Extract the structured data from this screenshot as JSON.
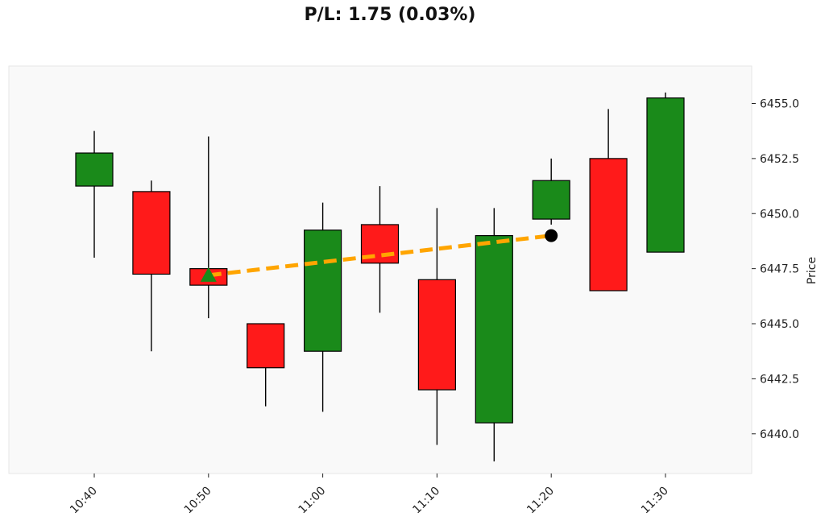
{
  "chart_data": {
    "type": "candlestick",
    "title": "P/L: 1.75 (0.03%)",
    "xlabel": "",
    "ylabel": "Price",
    "y_axis_side": "right",
    "ylim": [
      6438.2,
      6456.7
    ],
    "grid": false,
    "x_ticks": [
      "10:40",
      "10:50",
      "11:00",
      "11:10",
      "11:20",
      "11:30"
    ],
    "candles": [
      {
        "time": "10:40",
        "open": 6451.25,
        "high": 6453.75,
        "low": 6448.0,
        "close": 6452.75
      },
      {
        "time": "10:45",
        "open": 6451.0,
        "high": 6451.5,
        "low": 6443.75,
        "close": 6447.25
      },
      {
        "time": "10:50",
        "open": 6447.5,
        "high": 6453.5,
        "low": 6445.25,
        "close": 6446.75
      },
      {
        "time": "10:55",
        "open": 6445.0,
        "high": 6445.0,
        "low": 6441.25,
        "close": 6443.0
      },
      {
        "time": "11:00",
        "open": 6443.75,
        "high": 6450.5,
        "low": 6441.0,
        "close": 6449.25
      },
      {
        "time": "11:05",
        "open": 6449.5,
        "high": 6451.25,
        "low": 6445.5,
        "close": 6447.75
      },
      {
        "time": "11:10",
        "open": 6447.0,
        "high": 6450.25,
        "low": 6439.5,
        "close": 6442.0
      },
      {
        "time": "11:15",
        "open": 6440.5,
        "high": 6450.25,
        "low": 6438.75,
        "close": 6449.0
      },
      {
        "time": "11:20",
        "open": 6449.75,
        "high": 6452.5,
        "low": 6449.5,
        "close": 6451.5
      },
      {
        "time": "11:25",
        "open": 6452.5,
        "high": 6454.75,
        "low": 6446.5,
        "close": 6446.5
      },
      {
        "time": "11:30",
        "open": 6448.25,
        "high": 6455.5,
        "low": 6448.25,
        "close": 6455.25
      }
    ],
    "trade": {
      "entry": {
        "time": "10:50",
        "price": 6447.2
      },
      "exit": {
        "time": "11:20",
        "price": 6449.0
      },
      "line_color": "#FFA500",
      "entry_marker_color": "#1a8a1a",
      "exit_marker_color": "#000000"
    },
    "colors": {
      "up": "#1a8a1a",
      "down": "#ff1a1a",
      "wick": "#000000",
      "plot_background": "#f9f9f9"
    }
  }
}
